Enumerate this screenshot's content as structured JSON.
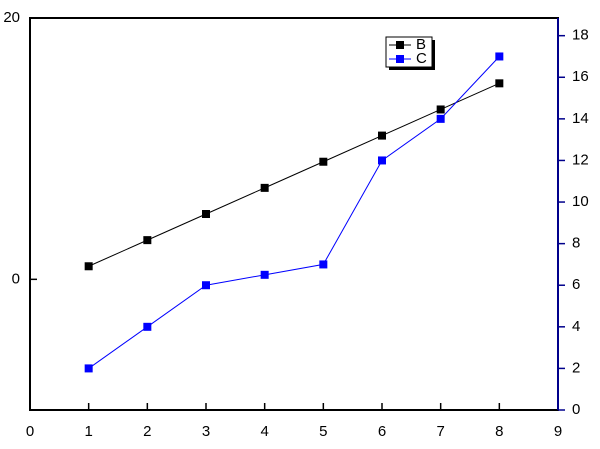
{
  "chart_data": {
    "type": "line",
    "x": [
      1,
      2,
      3,
      4,
      5,
      6,
      7,
      8
    ],
    "series": [
      {
        "name": "B",
        "color": "#000000",
        "values": [
          1,
          3,
          5,
          7,
          9,
          11,
          13,
          15
        ]
      },
      {
        "name": "C",
        "color": "#0000ff",
        "axis": "y2",
        "values": [
          2,
          4,
          6,
          6.5,
          7,
          12,
          14,
          17
        ]
      }
    ],
    "xlim": [
      0,
      9
    ],
    "xticks": [
      0,
      1,
      2,
      3,
      4,
      5,
      6,
      7,
      8,
      9
    ],
    "ylim": [
      -10,
      20
    ],
    "yticks": [
      0,
      20
    ],
    "y2lim": [
      0,
      18.85
    ],
    "y2ticks": [
      0,
      2,
      4,
      6,
      8,
      10,
      12,
      14,
      16,
      18
    ],
    "y2color": "#00008b",
    "legend": "top-right"
  }
}
